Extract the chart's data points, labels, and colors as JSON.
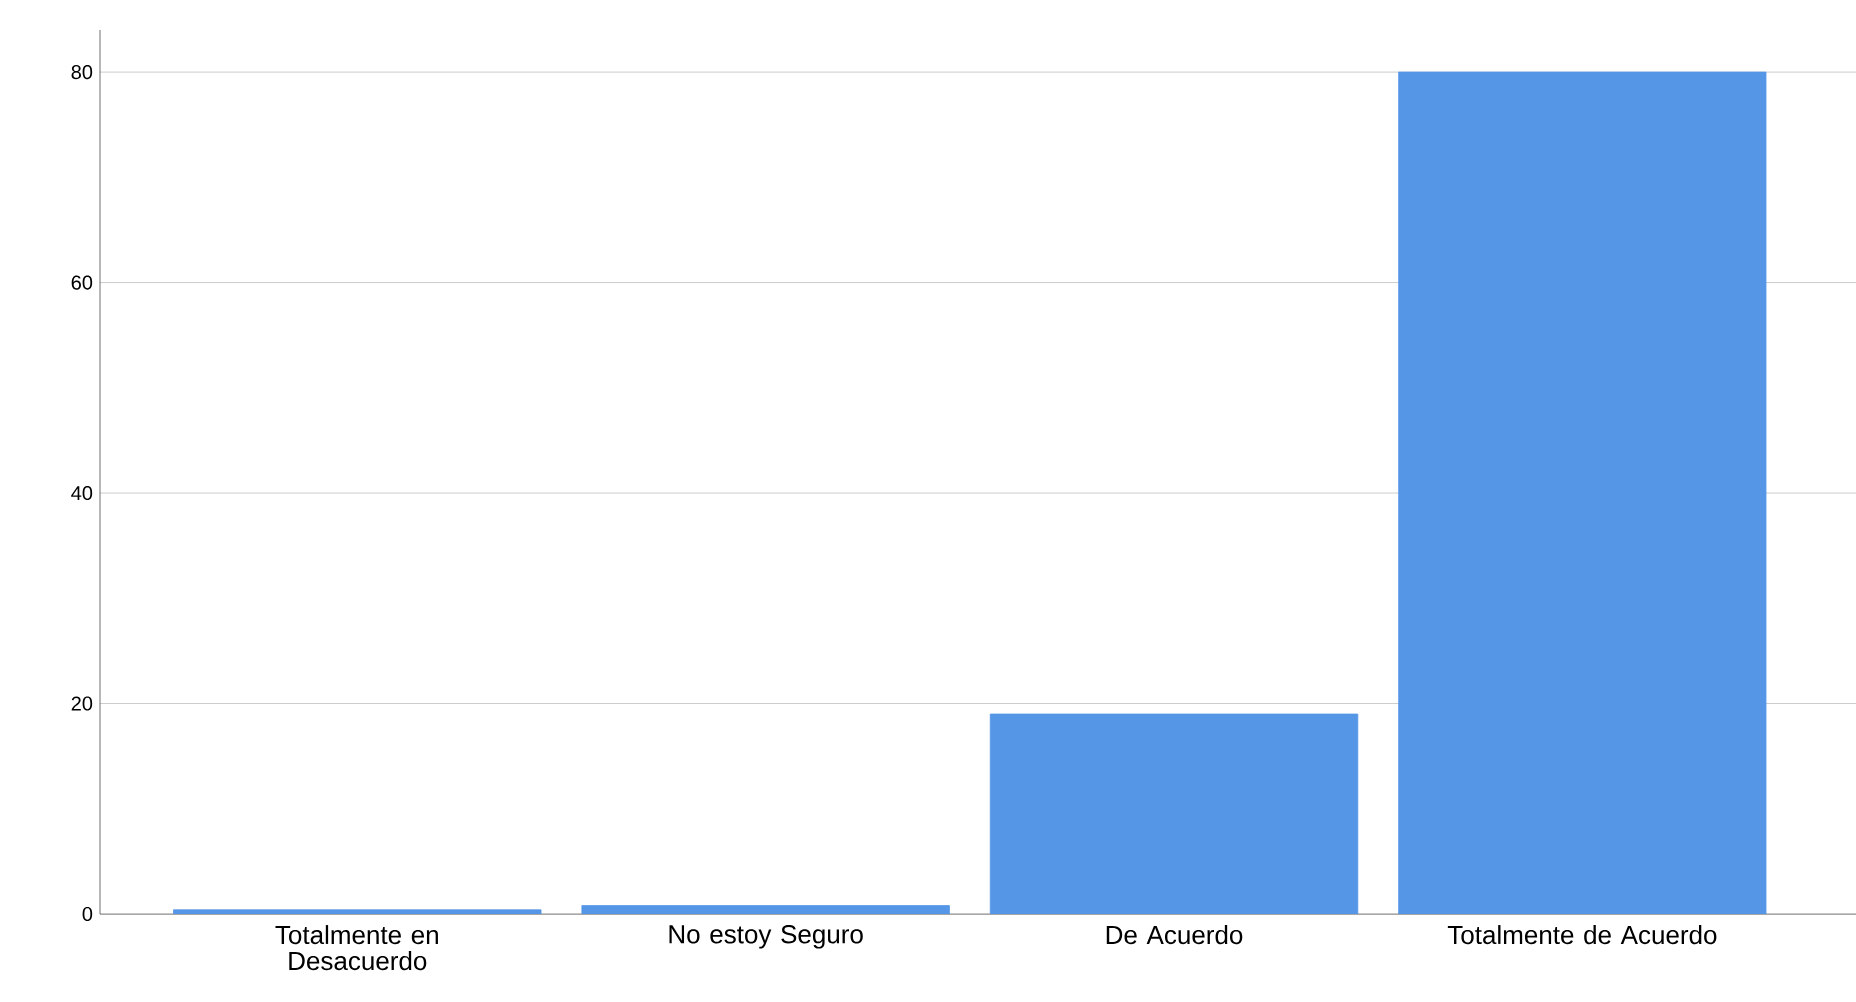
{
  "chart_data": {
    "type": "bar",
    "categories": [
      "Totalmente en Desacuerdo",
      "No estoy Seguro",
      "De Acuerdo",
      "Totalmente de Acuerdo"
    ],
    "values": [
      0.4,
      0.8,
      19,
      80
    ],
    "color": "#5596e6",
    "ylim": [
      0,
      84
    ],
    "yticks": [
      0,
      20,
      40,
      60,
      80
    ],
    "grid": "y"
  }
}
